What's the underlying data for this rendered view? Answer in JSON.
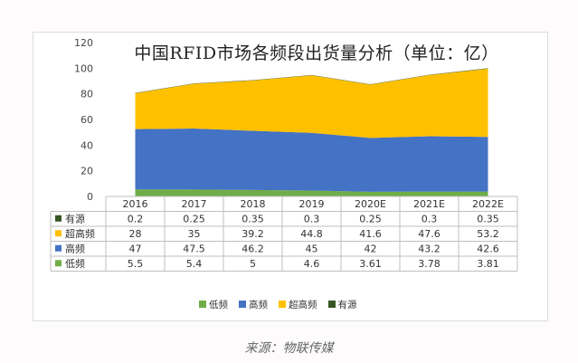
{
  "chart_data": {
    "type": "area",
    "title": "中国RFID市场各频段出货量分析（单位：亿）",
    "categories": [
      "2016",
      "2017",
      "2018",
      "2019",
      "2020E",
      "2021E",
      "2022E"
    ],
    "ylim": [
      0,
      120
    ],
    "yticks": [
      "0",
      "20",
      "40",
      "60",
      "80",
      "100",
      "120"
    ],
    "stacked": true,
    "series": [
      {
        "name": "低频",
        "color": "#70ad47",
        "values": [
          5.5,
          5.4,
          5,
          4.6,
          3.61,
          3.78,
          3.81
        ],
        "labels": [
          "5.5",
          "5.4",
          "5",
          "4.6",
          "3.61",
          "3.78",
          "3.81"
        ]
      },
      {
        "name": "高频",
        "color": "#4472c4",
        "values": [
          47,
          47.5,
          46.2,
          45,
          42,
          43.2,
          42.6
        ],
        "labels": [
          "47",
          "47.5",
          "46.2",
          "45",
          "42",
          "43.2",
          "42.6"
        ]
      },
      {
        "name": "超高频",
        "color": "#ffc000",
        "values": [
          28,
          35,
          39.2,
          44.8,
          41.6,
          47.6,
          53.2
        ],
        "labels": [
          "28",
          "35",
          "39.2",
          "44.8",
          "41.6",
          "47.6",
          "53.2"
        ]
      },
      {
        "name": "有源",
        "color": "#375623",
        "values": [
          0.2,
          0.25,
          0.35,
          0.3,
          0.25,
          0.3,
          0.35
        ],
        "labels": [
          "0.2",
          "0.25",
          "0.35",
          "0.3",
          "0.25",
          "0.3",
          "0.35"
        ]
      }
    ],
    "table_row_order": [
      "有源",
      "超高频",
      "高频",
      "低频"
    ],
    "legend_position": "bottom",
    "grid": false
  },
  "source_label": "来源：物联传媒"
}
